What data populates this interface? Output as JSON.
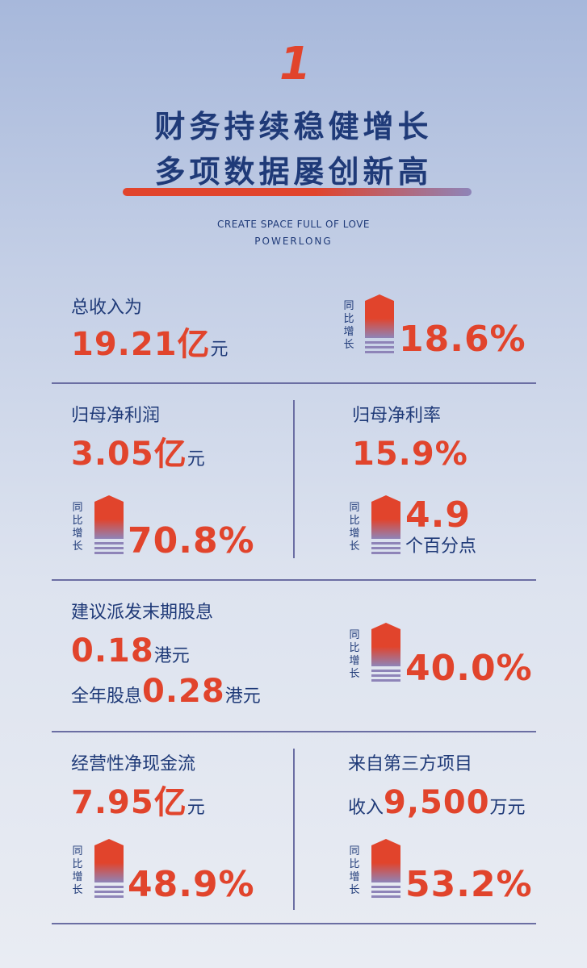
{
  "header": {
    "number": "1",
    "title_line1": "财务持续稳健增长",
    "title_line2": "多项数据屡创新高",
    "tagline": "CREATE SPACE FULL OF LOVE",
    "brand": "POWERLONG"
  },
  "growth_label": [
    "同",
    "比",
    "增",
    "长"
  ],
  "total_revenue": {
    "label": "总收入为",
    "value": "19.21亿",
    "unit": "元",
    "growth": "18.6%"
  },
  "net_profit": {
    "label": "归母净利润",
    "value": "3.05亿",
    "unit": "元",
    "growth": "70.8%"
  },
  "net_margin": {
    "label": "归母净利率",
    "value": "15.9%",
    "growth_value": "4.9",
    "growth_unit": "个百分点"
  },
  "dividend": {
    "label": "建议派发末期股息",
    "final_value": "0.18",
    "final_unit": "港元",
    "annual_label": "全年股息",
    "annual_value": "0.28",
    "annual_unit": "港元",
    "growth": "40.0%"
  },
  "operating_cashflow": {
    "label": "经营性净现金流",
    "value": "7.95亿",
    "unit": "元",
    "growth": "48.9%"
  },
  "third_party": {
    "label": "来自第三方项目",
    "prefix": "收入",
    "value": "9,500",
    "unit": "万元",
    "growth": "53.2%"
  },
  "colors": {
    "accent_red": "#e1442c",
    "navy": "#1f3a78",
    "lavender": "#8e84b8"
  }
}
